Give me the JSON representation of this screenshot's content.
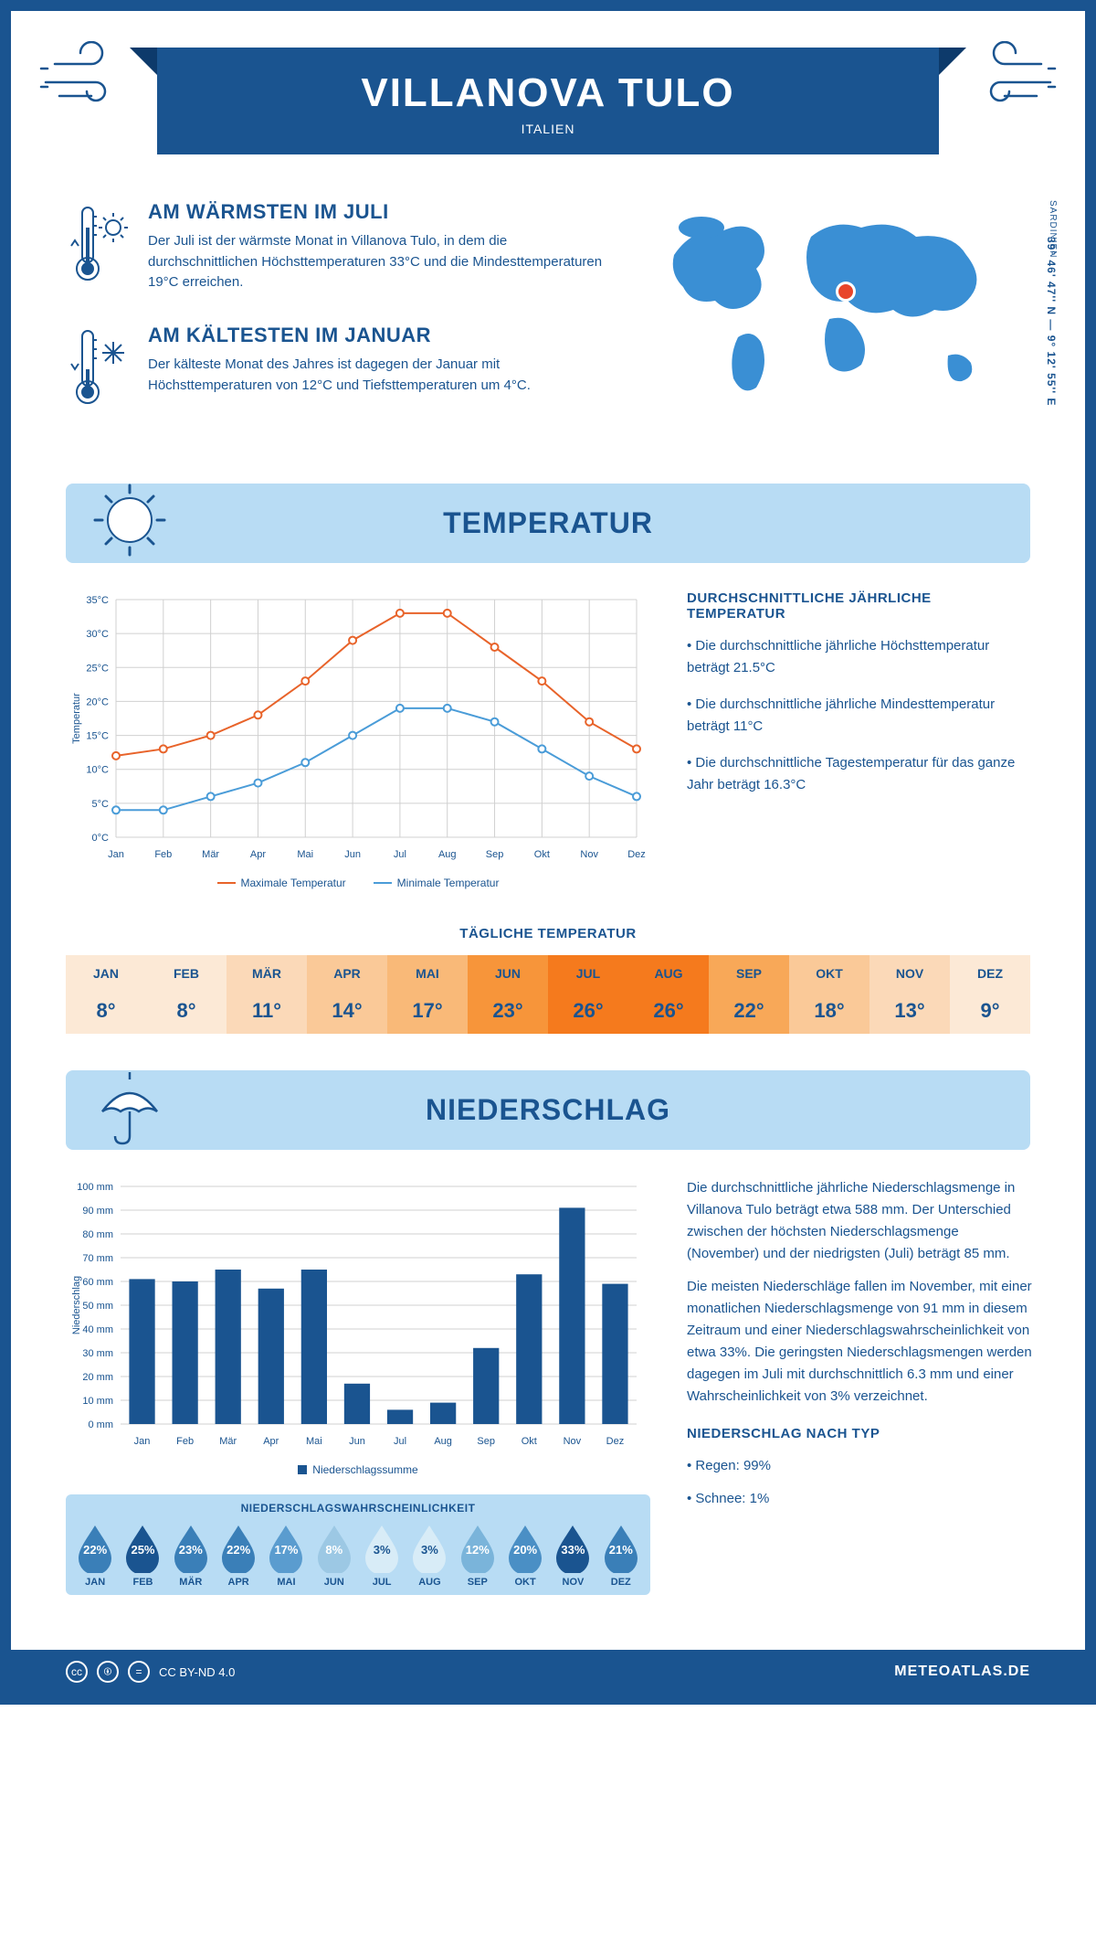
{
  "header": {
    "title": "VILLANOVA TULO",
    "subtitle": "ITALIEN"
  },
  "coordinates": "39° 46' 47'' N — 9° 12' 55'' E",
  "region": "SARDINIEN",
  "facts": {
    "warmest": {
      "title": "AM WÄRMSTEN IM JULI",
      "text": "Der Juli ist der wärmste Monat in Villanova Tulo, in dem die durchschnittlichen Höchsttemperaturen 33°C und die Mindesttemperaturen 19°C erreichen."
    },
    "coldest": {
      "title": "AM KÄLTESTEN IM JANUAR",
      "text": "Der kälteste Monat des Jahres ist dagegen der Januar mit Höchsttemperaturen von 12°C und Tiefsttemperaturen um 4°C."
    }
  },
  "temperature": {
    "section_title": "TEMPERATUR",
    "info_title": "DURCHSCHNITTLICHE JÄHRLICHE TEMPERATUR",
    "bullets": [
      "• Die durchschnittliche jährliche Höchsttemperatur beträgt 21.5°C",
      "• Die durchschnittliche jährliche Mindesttemperatur beträgt 11°C",
      "• Die durchschnittliche Tagestemperatur für das ganze Jahr beträgt 16.3°C"
    ],
    "chart": {
      "months": [
        "Jan",
        "Feb",
        "Mär",
        "Apr",
        "Mai",
        "Jun",
        "Jul",
        "Aug",
        "Sep",
        "Okt",
        "Nov",
        "Dez"
      ],
      "max": [
        12,
        13,
        15,
        18,
        23,
        29,
        33,
        33,
        28,
        23,
        17,
        13
      ],
      "min": [
        4,
        4,
        6,
        8,
        11,
        15,
        19,
        19,
        17,
        13,
        9,
        6
      ],
      "ylim": [
        0,
        35
      ],
      "ytick_step": 5,
      "max_color": "#e8632a",
      "min_color": "#4a9cd8",
      "grid_color": "#d0d0d0",
      "ylabel": "Temperatur",
      "legend_max": "Maximale Temperatur",
      "legend_min": "Minimale Temperatur"
    },
    "daily_title": "TÄGLICHE TEMPERATUR",
    "daily": {
      "months": [
        "JAN",
        "FEB",
        "MÄR",
        "APR",
        "MAI",
        "JUN",
        "JUL",
        "AUG",
        "SEP",
        "OKT",
        "NOV",
        "DEZ"
      ],
      "values": [
        "8°",
        "8°",
        "11°",
        "14°",
        "17°",
        "23°",
        "26°",
        "26°",
        "22°",
        "18°",
        "13°",
        "9°"
      ],
      "colors": [
        "#fce9d6",
        "#fce9d6",
        "#fbd9b8",
        "#fac998",
        "#f9b978",
        "#f7953a",
        "#f57a1d",
        "#f57a1d",
        "#f8a858",
        "#fac998",
        "#fbd9b8",
        "#fce9d6"
      ]
    }
  },
  "precipitation": {
    "section_title": "NIEDERSCHLAG",
    "text1": "Die durchschnittliche jährliche Niederschlagsmenge in Villanova Tulo beträgt etwa 588 mm. Der Unterschied zwischen der höchsten Niederschlagsmenge (November) und der niedrigsten (Juli) beträgt 85 mm.",
    "text2": "Die meisten Niederschläge fallen im November, mit einer monatlichen Niederschlagsmenge von 91 mm in diesem Zeitraum und einer Niederschlagswahrscheinlichkeit von etwa 33%. Die geringsten Niederschlagsmengen werden dagegen im Juli mit durchschnittlich 6.3 mm und einer Wahrscheinlichkeit von 3% verzeichnet.",
    "type_title": "NIEDERSCHLAG NACH TYP",
    "type_bullets": [
      "• Regen: 99%",
      "• Schnee: 1%"
    ],
    "chart": {
      "months": [
        "Jan",
        "Feb",
        "Mär",
        "Apr",
        "Mai",
        "Jun",
        "Jul",
        "Aug",
        "Sep",
        "Okt",
        "Nov",
        "Dez"
      ],
      "values": [
        61,
        60,
        65,
        57,
        65,
        17,
        6,
        9,
        32,
        63,
        91,
        59
      ],
      "ylim": [
        0,
        100
      ],
      "ytick_step": 10,
      "bar_color": "#1a5490",
      "ylabel": "Niederschlag",
      "legend": "Niederschlagssumme"
    },
    "probability": {
      "title": "NIEDERSCHLAGSWAHRSCHEINLICHKEIT",
      "months": [
        "JAN",
        "FEB",
        "MÄR",
        "APR",
        "MAI",
        "JUN",
        "JUL",
        "AUG",
        "SEP",
        "OKT",
        "NOV",
        "DEZ"
      ],
      "pct": [
        "22%",
        "25%",
        "23%",
        "22%",
        "17%",
        "8%",
        "3%",
        "3%",
        "12%",
        "20%",
        "33%",
        "21%"
      ],
      "colors": [
        "#3a7fb8",
        "#1a5490",
        "#3a7fb8",
        "#3a7fb8",
        "#5a9ccf",
        "#9cc8e4",
        "#d8ecf7",
        "#d8ecf7",
        "#7ab4da",
        "#4a8fc5",
        "#1a5490",
        "#3a7fb8"
      ]
    }
  },
  "footer": {
    "license": "CC BY-ND 4.0",
    "site": "METEOATLAS.DE"
  },
  "colors": {
    "primary": "#1a5490",
    "light_blue": "#b8dcf4",
    "accent_orange": "#e8632a",
    "marker_red": "#e8452a"
  }
}
